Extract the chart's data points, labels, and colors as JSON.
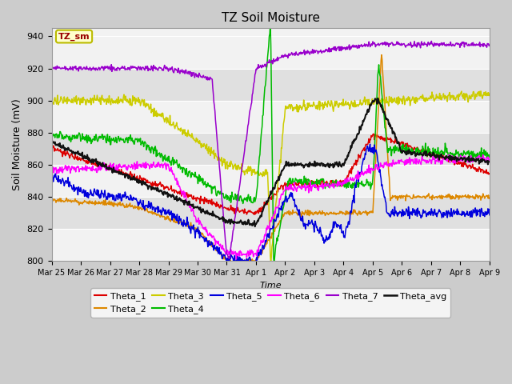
{
  "title": "TZ Soil Moisture",
  "xlabel": "Time",
  "ylabel": "Soil Moisture (mV)",
  "ylim": [
    800,
    945
  ],
  "yticks": [
    800,
    820,
    840,
    860,
    880,
    900,
    920,
    940
  ],
  "figsize": [
    6.4,
    4.8
  ],
  "dpi": 100,
  "series_colors": {
    "Theta_1": "#dd0000",
    "Theta_2": "#dd8800",
    "Theta_3": "#cccc00",
    "Theta_4": "#00bb00",
    "Theta_5": "#0000dd",
    "Theta_6": "#ff00ff",
    "Theta_7": "#9900cc",
    "Theta_avg": "#111111"
  },
  "bg_color": "#cccccc",
  "plot_bg_light": "#f2f2f2",
  "plot_bg_dark": "#e0e0e0",
  "annotation_text": "TZ_sm",
  "annotation_fg": "#990000",
  "annotation_bg": "#ffffcc",
  "annotation_border": "#bbbb00",
  "legend_ncol_row1": 6,
  "legend_ncol_row2": 2
}
